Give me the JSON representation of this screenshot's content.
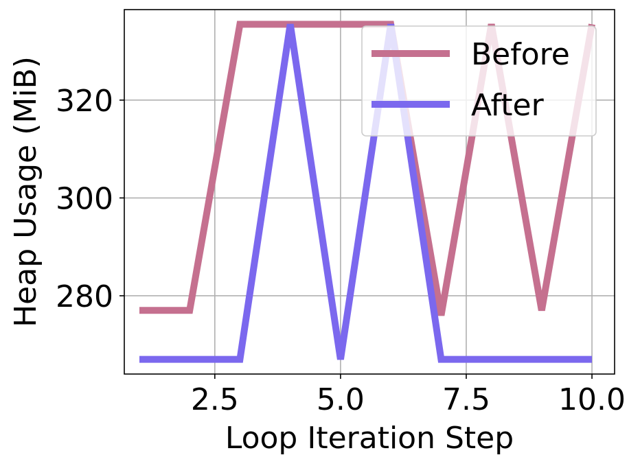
{
  "chart_data": {
    "type": "line",
    "title": "",
    "xlabel": "Loop Iteration Step",
    "ylabel": "Heap Usage (MiB)",
    "xlim": [
      0.7,
      10.45
    ],
    "ylim": [
      264,
      338.5
    ],
    "xticks": [
      2.5,
      5.0,
      7.5,
      10.0
    ],
    "xtick_labels": [
      "2.5",
      "5.0",
      "7.5",
      "10.0"
    ],
    "yticks": [
      280,
      300,
      320
    ],
    "ytick_labels": [
      "280",
      "300",
      "320"
    ],
    "grid": true,
    "legend_position": "top-right",
    "x": [
      1,
      2,
      3,
      4,
      5,
      6,
      7,
      8,
      9,
      10
    ],
    "series": [
      {
        "name": "Before",
        "color": "#c5708f",
        "values": [
          277,
          277,
          335.5,
          335.5,
          335.5,
          335.5,
          276,
          335.5,
          277,
          335.5
        ]
      },
      {
        "name": "After",
        "color": "#7b68ee",
        "values": [
          267,
          267,
          267,
          335.5,
          267,
          335.5,
          267,
          267,
          267,
          267
        ]
      }
    ]
  }
}
